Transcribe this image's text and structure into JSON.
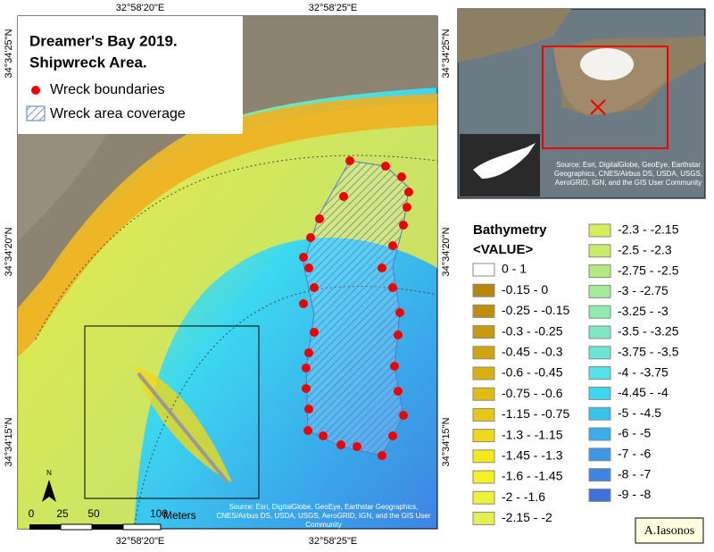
{
  "map": {
    "title_lines": [
      "Dreamer's Bay 2019.",
      "Shipwreck Area."
    ],
    "legend": {
      "points": "Wreck boundaries",
      "area": "Wreck area coverage"
    },
    "longitudes": [
      "32°58'20\"E",
      "32°58'25\"E"
    ],
    "latitudes": [
      "34°34'25\"N",
      "34°34'20\"N",
      "34°34'15\"N"
    ],
    "north": "N",
    "scale": {
      "ticks": [
        "0",
        "25",
        "50",
        "100"
      ],
      "unit": "Meters"
    },
    "source": "Source: Esri, DigitalGlobe, GeoEye, Earthstar Geographics, CNES/Airbus DS, USDA, USGS, AeroGRID, IGN, and the GIS User Community"
  },
  "inset": {
    "source": "Source: Esri, DigitalGlobe, GeoEye, Earthstar Geographics, CNES/Airbus DS, USDA, USGS, AeroGRID, IGN, and the GIS User Community"
  },
  "bathymetry": {
    "title": "Bathymetry",
    "field": "<VALUE>",
    "classes": [
      {
        "label": "0 - 1",
        "color": "#ffffff"
      },
      {
        "label": "-0.15 - 0",
        "color": "#b8860b"
      },
      {
        "label": "-0.25 - -0.15",
        "color": "#bf8f0c"
      },
      {
        "label": "-0.3 - -0.25",
        "color": "#c89a0e"
      },
      {
        "label": "-0.45 - -0.3",
        "color": "#d0a510"
      },
      {
        "label": "-0.6 - -0.45",
        "color": "#d8b012"
      },
      {
        "label": "-0.75 - -0.6",
        "color": "#e0bc14"
      },
      {
        "label": "-1.15 - -0.75",
        "color": "#e8c816"
      },
      {
        "label": "-1.3 - -1.15",
        "color": "#f0d818"
      },
      {
        "label": "-1.45 - -1.3",
        "color": "#f8e81a"
      },
      {
        "label": "-1.6 - -1.45",
        "color": "#f5f020"
      },
      {
        "label": "-2 - -1.6",
        "color": "#eef238"
      },
      {
        "label": "-2.15 - -2",
        "color": "#e4f050"
      },
      {
        "label": "-2.3 - -2.15",
        "color": "#d6ee5c"
      },
      {
        "label": "-2.5 - -2.3",
        "color": "#c6ec6c"
      },
      {
        "label": "-2.75 - -2.5",
        "color": "#b4ea80"
      },
      {
        "label": "-3 - -2.75",
        "color": "#a4ea98"
      },
      {
        "label": "-3.25 - -3",
        "color": "#90eab0"
      },
      {
        "label": "-3.5 - -3.25",
        "color": "#7ee8c4"
      },
      {
        "label": "-3.75 - -3.5",
        "color": "#6ae6d8"
      },
      {
        "label": "-4 - -3.75",
        "color": "#54e2e8"
      },
      {
        "label": "-4.45 - -4",
        "color": "#3cd8f0"
      },
      {
        "label": "-5 - -4.5",
        "color": "#38c4ee"
      },
      {
        "label": "-6 - -5",
        "color": "#3aaeea"
      },
      {
        "label": "-7 - -6",
        "color": "#3c98e6"
      },
      {
        "label": "-8 - -7",
        "color": "#3e84e2"
      },
      {
        "label": "-9 - -8",
        "color": "#4070dc"
      }
    ]
  },
  "credit": "A.Iasonos"
}
